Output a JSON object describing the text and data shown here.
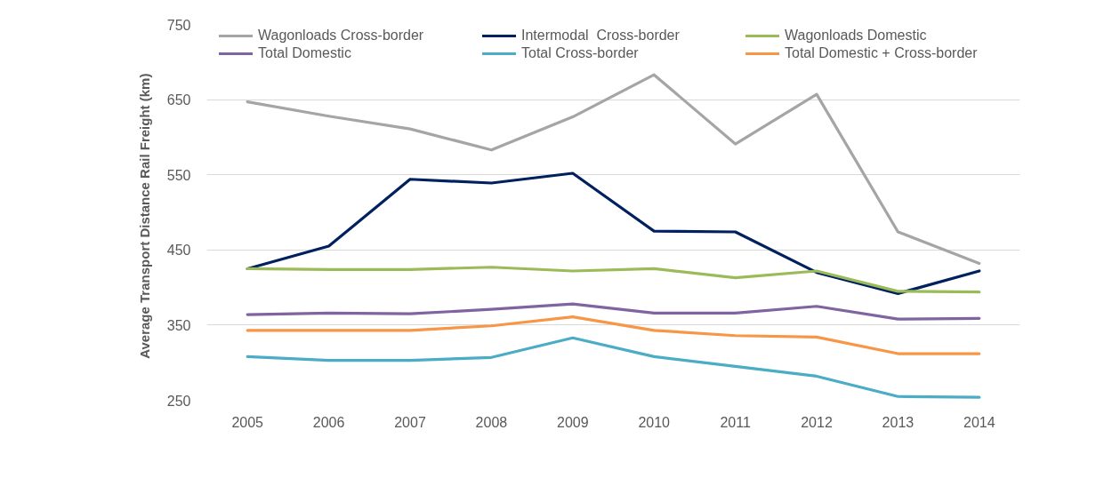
{
  "chart_data": {
    "type": "line",
    "ylabel": "Average Transport Distance  Rail Freight  (km)",
    "categories": [
      "2005",
      "2006",
      "2007",
      "2008",
      "2009",
      "2010",
      "2011",
      "2012",
      "2013",
      "2014"
    ],
    "series": [
      {
        "name": "Wagonloads Cross-border",
        "color": "#a5a5a5",
        "values": [
          647,
          628,
          611,
          583,
          627,
          683,
          591,
          657,
          474,
          432
        ]
      },
      {
        "name": "Intermodal  Cross-border",
        "color": "#002060",
        "values": [
          425,
          455,
          544,
          539,
          552,
          475,
          474,
          420,
          392,
          422
        ]
      },
      {
        "name": "Wagonloads Domestic",
        "color": "#9bbb59",
        "values": [
          425,
          424,
          424,
          427,
          422,
          425,
          413,
          422,
          395,
          394
        ]
      },
      {
        "name": "Total Domestic",
        "color": "#8064a2",
        "values": [
          364,
          366,
          365,
          371,
          378,
          366,
          366,
          375,
          358,
          359
        ]
      },
      {
        "name": "Total Cross-border",
        "color": "#4bacc6",
        "values": [
          308,
          303,
          303,
          307,
          333,
          308,
          295,
          282,
          255,
          254
        ]
      },
      {
        "name": "Total Domestic + Cross-border",
        "color": "#f79646",
        "values": [
          343,
          343,
          343,
          349,
          361,
          343,
          336,
          334,
          312,
          312
        ]
      }
    ],
    "ylim": [
      250,
      750
    ],
    "yticks": [
      250,
      350,
      450,
      550,
      650,
      750
    ],
    "grid": "y",
    "legend": "top",
    "marker": "none",
    "line_style": "solid"
  }
}
